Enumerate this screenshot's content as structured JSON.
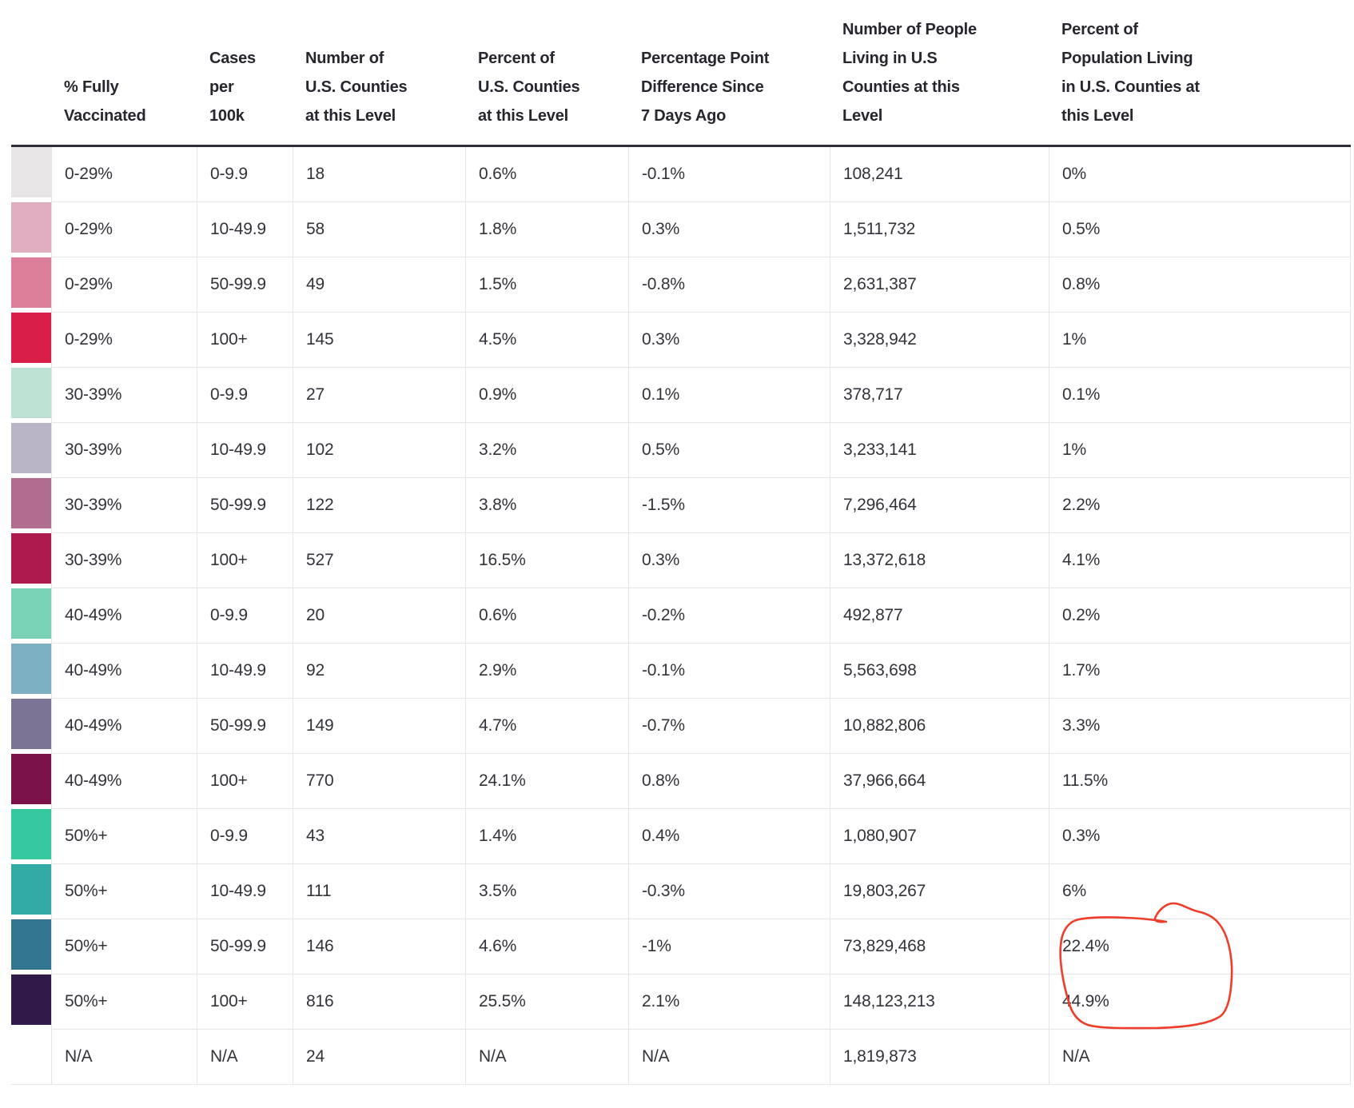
{
  "chart_data": {
    "type": "table",
    "columns": [
      {
        "key": "swatch",
        "label": ""
      },
      {
        "key": "vaccinated",
        "label": "% Fully\nVaccinated"
      },
      {
        "key": "cases",
        "label": "Cases\nper\n100k"
      },
      {
        "key": "num_counties",
        "label": "Number of\nU.S. Counties\nat this Level"
      },
      {
        "key": "pct_counties",
        "label": "Percent of\nU.S. Counties\nat this Level"
      },
      {
        "key": "pp_diff",
        "label": "Percentage Point\nDifference Since\n7 Days Ago"
      },
      {
        "key": "num_people",
        "label": "Number of People\nLiving in U.S\nCounties at this\nLevel"
      },
      {
        "key": "pct_population",
        "label": "Percent of\nPopulation Living\nin U.S. Counties at\nthis Level"
      }
    ],
    "rows": [
      {
        "color": "#e7e5e6",
        "vaccinated": "0-29%",
        "cases": "0-9.9",
        "num_counties": "18",
        "pct_counties": "0.6%",
        "pp_diff": "-0.1%",
        "num_people": "108,241",
        "pct_population": "0%"
      },
      {
        "color": "#e1adc0",
        "vaccinated": "0-29%",
        "cases": "10-49.9",
        "num_counties": "58",
        "pct_counties": "1.8%",
        "pp_diff": "0.3%",
        "num_people": "1,511,732",
        "pct_population": "0.5%"
      },
      {
        "color": "#dd7e9b",
        "vaccinated": "0-29%",
        "cases": "50-99.9",
        "num_counties": "49",
        "pct_counties": "1.5%",
        "pp_diff": "-0.8%",
        "num_people": "2,631,387",
        "pct_population": "0.8%"
      },
      {
        "color": "#d91e49",
        "vaccinated": "0-29%",
        "cases": "100+",
        "num_counties": "145",
        "pct_counties": "4.5%",
        "pp_diff": "0.3%",
        "num_people": "3,328,942",
        "pct_population": "1%"
      },
      {
        "color": "#bce3d3",
        "vaccinated": "30-39%",
        "cases": "0-9.9",
        "num_counties": "27",
        "pct_counties": "0.9%",
        "pp_diff": "0.1%",
        "num_people": "378,717",
        "pct_population": "0.1%"
      },
      {
        "color": "#b9b5c6",
        "vaccinated": "30-39%",
        "cases": "10-49.9",
        "num_counties": "102",
        "pct_counties": "3.2%",
        "pp_diff": "0.5%",
        "num_people": "3,233,141",
        "pct_population": "1%"
      },
      {
        "color": "#b06d90",
        "vaccinated": "30-39%",
        "cases": "50-99.9",
        "num_counties": "122",
        "pct_counties": "3.8%",
        "pp_diff": "-1.5%",
        "num_people": "7,296,464",
        "pct_population": "2.2%"
      },
      {
        "color": "#ae1a4d",
        "vaccinated": "30-39%",
        "cases": "100+",
        "num_counties": "527",
        "pct_counties": "16.5%",
        "pp_diff": "0.3%",
        "num_people": "13,372,618",
        "pct_population": "4.1%"
      },
      {
        "color": "#79d2b6",
        "vaccinated": "40-49%",
        "cases": "0-9.9",
        "num_counties": "20",
        "pct_counties": "0.6%",
        "pp_diff": "-0.2%",
        "num_people": "492,877",
        "pct_population": "0.2%"
      },
      {
        "color": "#7db0c2",
        "vaccinated": "40-49%",
        "cases": "10-49.9",
        "num_counties": "92",
        "pct_counties": "2.9%",
        "pp_diff": "-0.1%",
        "num_people": "5,563,698",
        "pct_population": "1.7%"
      },
      {
        "color": "#7b7494",
        "vaccinated": "40-49%",
        "cases": "50-99.9",
        "num_counties": "149",
        "pct_counties": "4.7%",
        "pp_diff": "-0.7%",
        "num_people": "10,882,806",
        "pct_population": "3.3%"
      },
      {
        "color": "#7b1149",
        "vaccinated": "40-49%",
        "cases": "100+",
        "num_counties": "770",
        "pct_counties": "24.1%",
        "pp_diff": "0.8%",
        "num_people": "37,966,664",
        "pct_population": "11.5%"
      },
      {
        "color": "#36c89e",
        "vaccinated": "50%+",
        "cases": "0-9.9",
        "num_counties": "43",
        "pct_counties": "1.4%",
        "pp_diff": "0.4%",
        "num_people": "1,080,907",
        "pct_population": "0.3%"
      },
      {
        "color": "#31aba4",
        "vaccinated": "50%+",
        "cases": "10-49.9",
        "num_counties": "111",
        "pct_counties": "3.5%",
        "pp_diff": "-0.3%",
        "num_people": "19,803,267",
        "pct_population": "6%"
      },
      {
        "color": "#327591",
        "vaccinated": "50%+",
        "cases": "50-99.9",
        "num_counties": "146",
        "pct_counties": "4.6%",
        "pp_diff": "-1%",
        "num_people": "73,829,468",
        "pct_population": "22.4%"
      },
      {
        "color": "#301a49",
        "vaccinated": "50%+",
        "cases": "100+",
        "num_counties": "816",
        "pct_counties": "25.5%",
        "pp_diff": "2.1%",
        "num_people": "148,123,213",
        "pct_population": "44.9%"
      },
      {
        "color": "",
        "vaccinated": "N/A",
        "cases": "N/A",
        "num_counties": "24",
        "pct_counties": "N/A",
        "pp_diff": "N/A",
        "num_people": "1,819,873",
        "pct_population": "N/A"
      }
    ]
  },
  "annotation": {
    "shape": "hand-drawn-circle",
    "color": "#f03d29",
    "circled_values": [
      "22.4%",
      "44.9%"
    ]
  }
}
